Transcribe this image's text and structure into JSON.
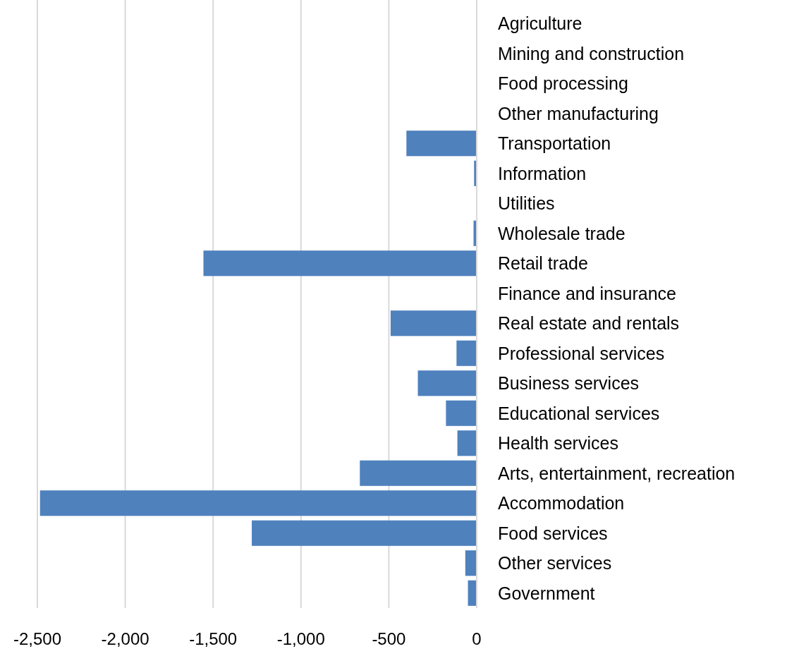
{
  "chart_data": {
    "type": "bar",
    "orientation": "horizontal",
    "categories": [
      "Agriculture",
      "Mining and construction",
      "Food processing",
      "Other manufacturing",
      "Transportation",
      "Information",
      "Utilities",
      "Wholesale trade",
      "Retail trade",
      "Finance and insurance",
      "Real estate and rentals",
      "Professional services",
      "Business services",
      "Educational services",
      "Health services",
      "Arts, entertainment, recreation",
      "Accommodation",
      "Food services",
      "Other services",
      "Government"
    ],
    "values": [
      0,
      0,
      0,
      0,
      -400,
      -15,
      0,
      -18,
      -1555,
      0,
      -490,
      -115,
      -335,
      -175,
      -110,
      -665,
      -2485,
      -1280,
      -65,
      -50
    ],
    "color": "#4f81bd",
    "xlim": [
      -2500,
      0
    ],
    "xticks": [
      {
        "value": -2500,
        "label": "-2,500"
      },
      {
        "value": -2000,
        "label": "-2,000"
      },
      {
        "value": -1500,
        "label": "-1,500"
      },
      {
        "value": -1000,
        "label": "-1,000"
      },
      {
        "value": -500,
        "label": "-500"
      },
      0
    ],
    "grid": "x"
  }
}
